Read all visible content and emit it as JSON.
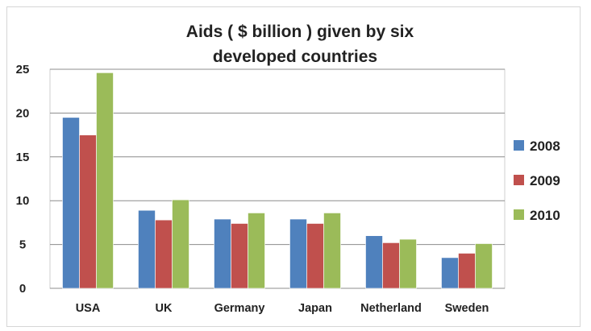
{
  "chart_data": {
    "type": "bar",
    "title": "Aids ( $ billion ) given by six",
    "title_line2": "developed countries",
    "xlabel": "",
    "ylabel": "",
    "ylim": [
      0,
      25
    ],
    "yticks": [
      0,
      5,
      10,
      15,
      20,
      25
    ],
    "grid": true,
    "legend_position": "right",
    "categories": [
      "USA",
      "UK",
      "Germany",
      "Japan",
      "Netherland",
      "Sweden"
    ],
    "series": [
      {
        "name": "2008",
        "color": "#4F81BD",
        "values": [
          19.5,
          8.9,
          7.9,
          7.9,
          6.0,
          3.5
        ]
      },
      {
        "name": "2009",
        "color": "#C0504D",
        "values": [
          17.5,
          7.8,
          7.4,
          7.4,
          5.2,
          4.0
        ]
      },
      {
        "name": "2010",
        "color": "#9BBB59",
        "values": [
          24.6,
          10.1,
          8.6,
          8.6,
          5.6,
          5.1
        ]
      }
    ]
  }
}
